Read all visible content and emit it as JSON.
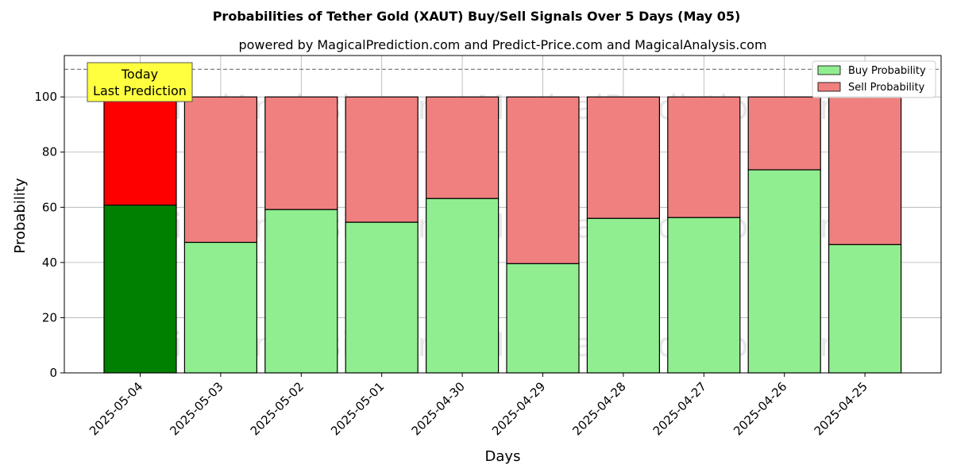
{
  "chart_data": {
    "type": "bar",
    "stacked": true,
    "title": "Probabilities of Tether Gold (XAUT) Buy/Sell Signals Over 5 Days (May 05)",
    "subtitle": "powered by MagicalPrediction.com and Predict-Price.com and MagicalAnalysis.com",
    "xlabel": "Days",
    "ylabel": "Probability",
    "ylim": [
      0,
      115
    ],
    "yticks": [
      0,
      20,
      40,
      60,
      80,
      100
    ],
    "reference_line": 110,
    "grid": true,
    "legend_position": "top-right",
    "categories": [
      "2025-05-04",
      "2025-05-03",
      "2025-05-02",
      "2025-05-01",
      "2025-04-30",
      "2025-04-29",
      "2025-04-28",
      "2025-04-27",
      "2025-04-26",
      "2025-04-25"
    ],
    "series": [
      {
        "name": "Buy Probability",
        "color": "#90ee90",
        "highlight_color": "#008000",
        "values": [
          60.8,
          47.3,
          59.2,
          54.6,
          63.2,
          39.6,
          56.0,
          56.3,
          73.6,
          46.5
        ]
      },
      {
        "name": "Sell Probability",
        "color": "#f08080",
        "highlight_color": "#ff0000",
        "values": [
          39.2,
          52.7,
          40.8,
          45.4,
          36.8,
          60.4,
          44.0,
          43.7,
          26.4,
          53.5
        ]
      }
    ],
    "annotation": {
      "line1": "Today",
      "line2": "Last Prediction",
      "color": "#ffff40"
    },
    "watermarks": [
      "MagicalAnalysis.com",
      "MagicalPrediction.com"
    ]
  }
}
